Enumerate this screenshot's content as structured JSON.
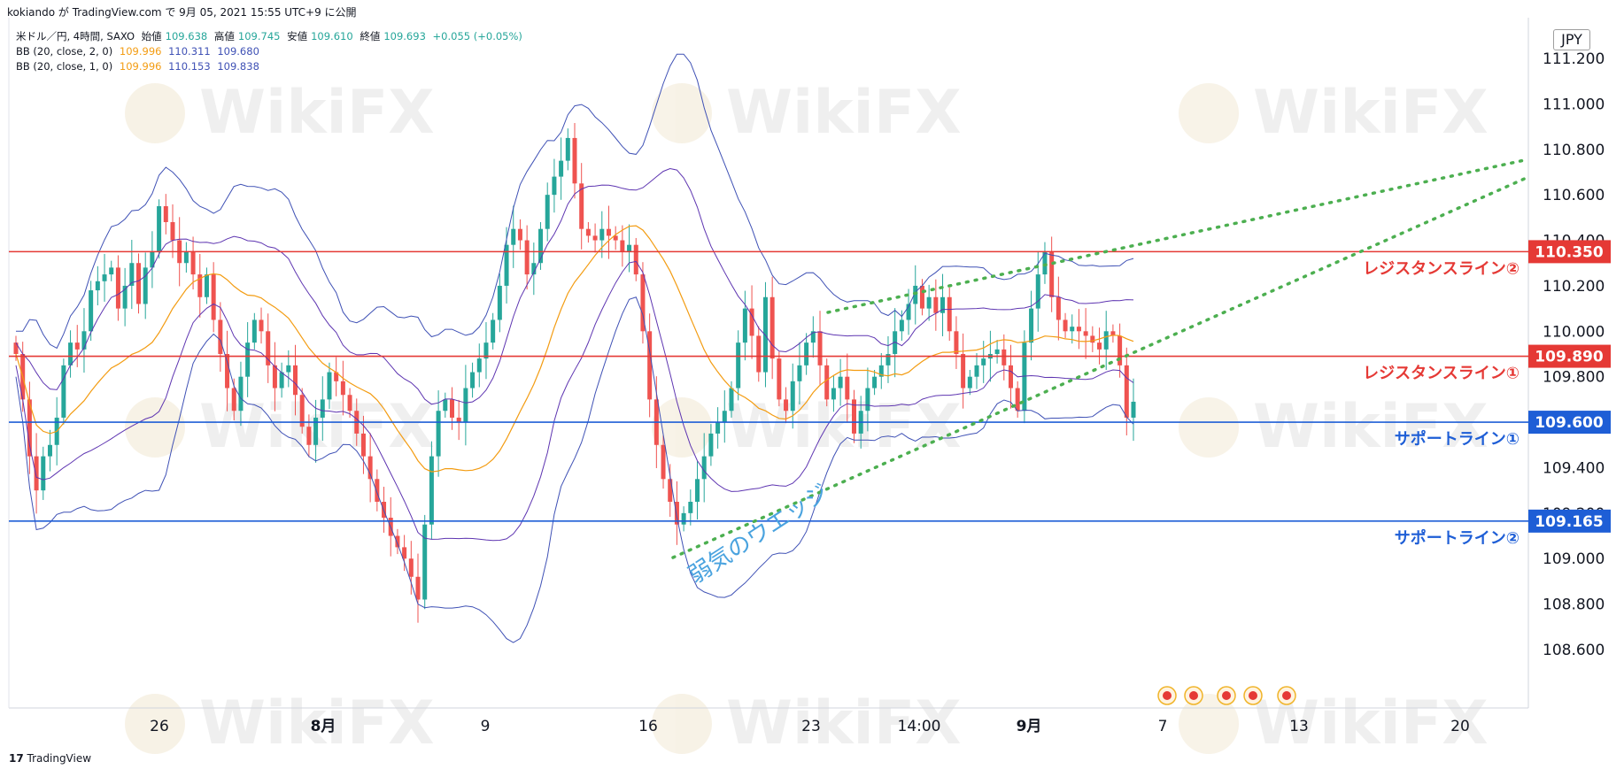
{
  "header": {
    "published_line": "kokiando が TradingView.com で 9月 05, 2021 15:55 UTC+9 に公開"
  },
  "legend": {
    "symbol": "米ドル／円, 4時間, SAXO",
    "open_label": "始値",
    "open": "109.638",
    "high_label": "高値",
    "high": "109.745",
    "low_label": "安値",
    "low": "109.610",
    "close_label": "終値",
    "close": "109.693",
    "change": "+0.055 (+0.05%)",
    "bb2_label": "BB (20, close, 2, 0)",
    "bb2_mid": "109.996",
    "bb2_up": "110.311",
    "bb2_low": "109.680",
    "bb1_label": "BB (20, close, 1, 0)",
    "bb1_mid": "109.996",
    "bb1_up": "110.153",
    "bb1_low": "109.838"
  },
  "currency": "JPY",
  "footer": {
    "logo": "TradingView"
  },
  "watermark": "WikiFX",
  "colors": {
    "up": "#26a69a",
    "down": "#ef5350",
    "resistance": "#e53935",
    "support": "#1e5ed6",
    "bb_outer": "#3f51b5",
    "bb_inner": "#5e35b1",
    "bb_mid": "#f39c12",
    "wedge": "#4caf50",
    "wedge_text": "#4aa3df"
  },
  "chart_data": {
    "type": "candlestick",
    "y_ticks": [
      "111.200",
      "111.000",
      "110.800",
      "110.600",
      "110.400",
      "110.200",
      "110.000",
      "109.800",
      "109.600",
      "109.400",
      "109.200",
      "109.000",
      "108.800",
      "108.600"
    ],
    "ylim": [
      108.5,
      111.25
    ],
    "x_ticks": [
      "26",
      "8月",
      "9",
      "16",
      "23",
      "14:00",
      "9月",
      "7",
      "13",
      "20"
    ],
    "horizontal_lines": [
      {
        "price": 110.35,
        "label": "110.350",
        "name": "レジスタンスライン②",
        "kind": "resistance"
      },
      {
        "price": 109.89,
        "label": "109.890",
        "name": "レジスタンスライン①",
        "kind": "resistance"
      },
      {
        "price": 109.6,
        "label": "109.600",
        "name": "サポートライン①",
        "kind": "support"
      },
      {
        "price": 109.165,
        "label": "109.165",
        "name": "サポートライン②",
        "kind": "support"
      }
    ],
    "annotation": "弱気のウエッジ",
    "closes": [
      109.9,
      109.7,
      109.45,
      109.3,
      109.45,
      109.5,
      109.62,
      109.85,
      109.95,
      109.92,
      110.0,
      110.18,
      110.22,
      110.25,
      110.28,
      110.1,
      110.2,
      110.3,
      110.12,
      110.28,
      110.35,
      110.55,
      110.48,
      110.4,
      110.3,
      110.35,
      110.25,
      110.15,
      110.25,
      110.05,
      109.9,
      109.75,
      109.65,
      109.8,
      109.95,
      110.05,
      110.0,
      109.85,
      109.75,
      109.82,
      109.85,
      109.72,
      109.58,
      109.5,
      109.62,
      109.7,
      109.82,
      109.78,
      109.72,
      109.65,
      109.55,
      109.45,
      109.35,
      109.25,
      109.18,
      109.1,
      109.05,
      109.0,
      108.92,
      108.82,
      109.15,
      109.45,
      109.65,
      109.7,
      109.62,
      109.6,
      109.75,
      109.82,
      109.88,
      109.95,
      110.05,
      110.2,
      110.38,
      110.45,
      110.4,
      110.25,
      110.3,
      110.45,
      110.6,
      110.68,
      110.75,
      110.85,
      110.65,
      110.45,
      110.42,
      110.4,
      110.45,
      110.42,
      110.4,
      110.35,
      110.38,
      110.25,
      110.0,
      109.7,
      109.5,
      109.35,
      109.25,
      109.15,
      109.2,
      109.25,
      109.35,
      109.45,
      109.55,
      109.6,
      109.65,
      109.75,
      109.95,
      110.1,
      109.98,
      109.82,
      110.15,
      109.88,
      109.7,
      109.65,
      109.78,
      109.85,
      109.95,
      110.0,
      109.85,
      109.7,
      109.75,
      109.8,
      109.7,
      109.55,
      109.65,
      109.75,
      109.8,
      109.85,
      109.9,
      110.0,
      110.05,
      110.12,
      110.2,
      110.1,
      110.15,
      110.08,
      110.15,
      110.0,
      109.9,
      109.75,
      109.8,
      109.85,
      109.88,
      109.9,
      109.92,
      109.85,
      109.75,
      109.65,
      109.95,
      110.1,
      110.25,
      110.35,
      110.15,
      110.05,
      110.0,
      110.02,
      110.0,
      109.98,
      109.95,
      109.92,
      110.0,
      109.98,
      109.85,
      109.62,
      109.69
    ]
  }
}
